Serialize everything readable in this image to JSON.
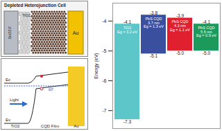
{
  "diagram": {
    "title": "Depleted Heterojunction Cell",
    "device_layers": [
      "SnO2:F",
      "TiO2",
      "Au"
    ],
    "band_diagram": {
      "light": "Light",
      "ec": "Ec",
      "ev": "Ev",
      "ef": "EF",
      "left": "TiO2",
      "middle": "CQD Film",
      "right": "Au"
    }
  },
  "chart_data": {
    "type": "floating_bar",
    "ylabel": "Energy (eV)",
    "categories": [
      "TiO2",
      "PbS CQD\n3.7 nm",
      "PbS CQD\n4.3 nm",
      "PbS CQD\n5.5 nm"
    ],
    "band_gap_labels": [
      "Eg = 3.2 eV",
      "Eg = 1.3 eV",
      "Eg = 1.1 eV",
      "Eg = 0.9 eV"
    ],
    "top": [
      -4.1,
      -3.8,
      -3.9,
      -4.1
    ],
    "bottom": [
      -7.3,
      -5.1,
      -5.0,
      -5.0
    ],
    "top_labels": [
      "-4.1",
      "-3.8",
      "-3.9",
      "-4.1"
    ],
    "bottom_labels": [
      "-7.3",
      "-5.1",
      "-5.0",
      "-5.0"
    ],
    "colors": [
      "#5cc6c8",
      "#3b4f9f",
      "#e0202e",
      "#1c9a5c"
    ],
    "ylim": [
      -7.6,
      -3.4
    ],
    "yticks": [
      -7,
      -6,
      -5,
      -4
    ],
    "grid": false,
    "data_labels": true,
    "tick_labels": "y"
  }
}
